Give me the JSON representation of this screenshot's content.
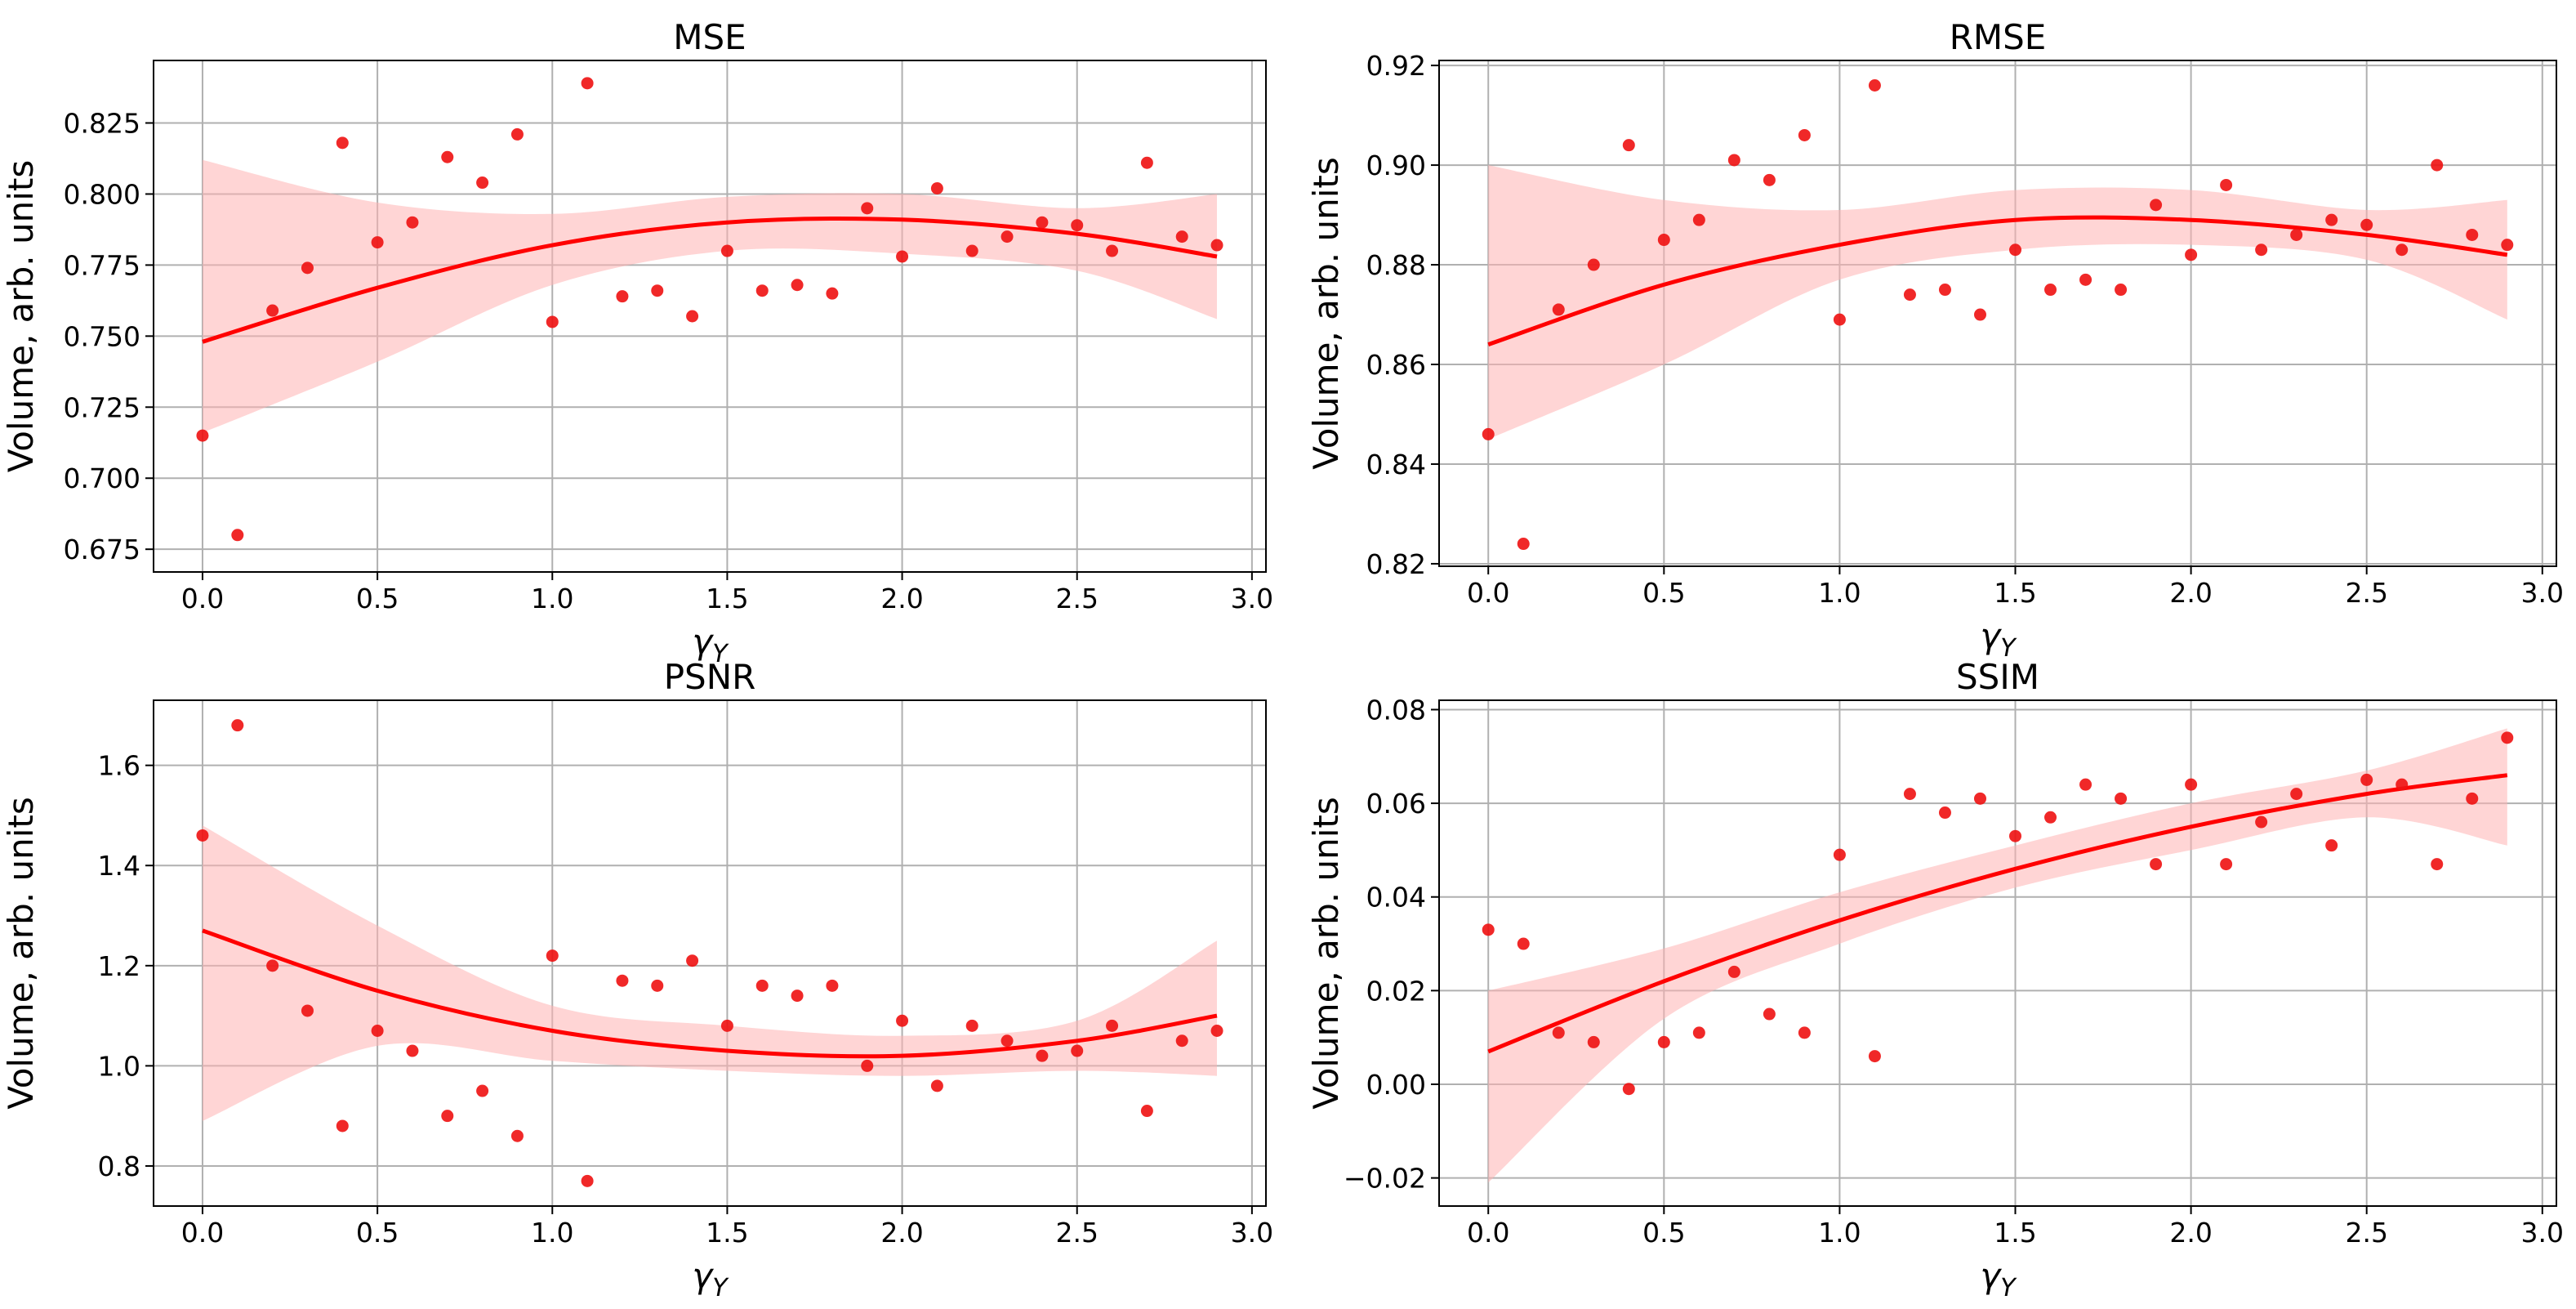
{
  "figure": {
    "ylabel": "Volume, arb. units",
    "xlabel": "γY"
  },
  "chart_data": [
    {
      "type": "scatter",
      "title": "MSE",
      "xlabel": "γY",
      "ylabel": "Volume, arb. units",
      "xlim": [
        -0.14,
        3.04
      ],
      "ylim": [
        0.667,
        0.847
      ],
      "xticks": [
        "0.0",
        "0.5",
        "1.0",
        "1.5",
        "2.0",
        "2.5",
        "3.0"
      ],
      "xtick_values": [
        0,
        0.5,
        1,
        1.5,
        2,
        2.5,
        3
      ],
      "yticks": [
        "0.675",
        "0.700",
        "0.725",
        "0.750",
        "0.775",
        "0.800",
        "0.825"
      ],
      "ytick_values": [
        0.675,
        0.7,
        0.725,
        0.75,
        0.775,
        0.8,
        0.825
      ],
      "grid": true,
      "x": [
        0.0,
        0.1,
        0.2,
        0.3,
        0.4,
        0.5,
        0.6,
        0.7,
        0.8,
        0.9,
        1.0,
        1.1,
        1.2,
        1.3,
        1.4,
        1.5,
        1.6,
        1.7,
        1.8,
        1.9,
        2.0,
        2.1,
        2.2,
        2.3,
        2.4,
        2.5,
        2.6,
        2.7,
        2.8,
        2.9
      ],
      "y": [
        0.715,
        0.68,
        0.759,
        0.774,
        0.818,
        0.783,
        0.79,
        0.813,
        0.804,
        0.821,
        0.755,
        0.839,
        0.764,
        0.766,
        0.757,
        0.78,
        0.766,
        0.768,
        0.765,
        0.795,
        0.778,
        0.802,
        0.78,
        0.785,
        0.79,
        0.789,
        0.78,
        0.811,
        0.785,
        0.782
      ],
      "fit_x": [
        0.0,
        0.5,
        1.0,
        1.5,
        2.0,
        2.5,
        2.9
      ],
      "fit_y": [
        0.748,
        0.767,
        0.782,
        0.79,
        0.791,
        0.786,
        0.778
      ],
      "ci_upper": [
        0.812,
        0.797,
        0.793,
        0.799,
        0.8,
        0.795,
        0.8
      ],
      "ci_lower": [
        0.716,
        0.741,
        0.768,
        0.78,
        0.779,
        0.773,
        0.756
      ]
    },
    {
      "type": "scatter",
      "title": "RMSE",
      "xlabel": "γY",
      "ylabel": "Volume, arb. units",
      "xlim": [
        -0.14,
        3.04
      ],
      "ylim": [
        0.8195,
        0.921
      ],
      "xticks": [
        "0.0",
        "0.5",
        "1.0",
        "1.5",
        "2.0",
        "2.5",
        "3.0"
      ],
      "xtick_values": [
        0,
        0.5,
        1,
        1.5,
        2,
        2.5,
        3
      ],
      "yticks": [
        "0.82",
        "0.84",
        "0.86",
        "0.88",
        "0.90",
        "0.92"
      ],
      "ytick_values": [
        0.82,
        0.84,
        0.86,
        0.88,
        0.9,
        0.92
      ],
      "grid": true,
      "x": [
        0.0,
        0.1,
        0.2,
        0.3,
        0.4,
        0.5,
        0.6,
        0.7,
        0.8,
        0.9,
        1.0,
        1.1,
        1.2,
        1.3,
        1.4,
        1.5,
        1.6,
        1.7,
        1.8,
        1.9,
        2.0,
        2.1,
        2.2,
        2.3,
        2.4,
        2.5,
        2.6,
        2.7,
        2.8,
        2.9
      ],
      "y": [
        0.846,
        0.824,
        0.871,
        0.88,
        0.904,
        0.885,
        0.889,
        0.901,
        0.897,
        0.906,
        0.869,
        0.916,
        0.874,
        0.875,
        0.87,
        0.883,
        0.875,
        0.877,
        0.875,
        0.892,
        0.882,
        0.896,
        0.883,
        0.886,
        0.889,
        0.888,
        0.883,
        0.9,
        0.886,
        0.884
      ],
      "fit_x": [
        0.0,
        0.5,
        1.0,
        1.5,
        2.0,
        2.5,
        2.9
      ],
      "fit_y": [
        0.864,
        0.876,
        0.884,
        0.889,
        0.889,
        0.886,
        0.882
      ],
      "ci_upper": [
        0.9,
        0.893,
        0.891,
        0.895,
        0.895,
        0.891,
        0.893
      ],
      "ci_lower": [
        0.845,
        0.86,
        0.877,
        0.883,
        0.884,
        0.881,
        0.869
      ]
    },
    {
      "type": "scatter",
      "title": "PSNR",
      "xlabel": "γY",
      "ylabel": "Volume, arb. units",
      "xlim": [
        -0.14,
        3.04
      ],
      "ylim": [
        0.72,
        1.73
      ],
      "xticks": [
        "0.0",
        "0.5",
        "1.0",
        "1.5",
        "2.0",
        "2.5",
        "3.0"
      ],
      "xtick_values": [
        0,
        0.5,
        1,
        1.5,
        2,
        2.5,
        3
      ],
      "yticks": [
        "0.8",
        "1.0",
        "1.2",
        "1.4",
        "1.6"
      ],
      "ytick_values": [
        0.8,
        1.0,
        1.2,
        1.4,
        1.6
      ],
      "grid": true,
      "x": [
        0.0,
        0.1,
        0.2,
        0.3,
        0.4,
        0.5,
        0.6,
        0.7,
        0.8,
        0.9,
        1.0,
        1.1,
        1.2,
        1.3,
        1.4,
        1.5,
        1.6,
        1.7,
        1.8,
        1.9,
        2.0,
        2.1,
        2.2,
        2.3,
        2.4,
        2.5,
        2.6,
        2.7,
        2.8,
        2.9
      ],
      "y": [
        1.46,
        1.68,
        1.2,
        1.11,
        0.88,
        1.07,
        1.03,
        0.9,
        0.95,
        0.86,
        1.22,
        0.77,
        1.17,
        1.16,
        1.21,
        1.08,
        1.16,
        1.14,
        1.16,
        1.0,
        1.09,
        0.96,
        1.08,
        1.05,
        1.02,
        1.03,
        1.08,
        0.91,
        1.05,
        1.07
      ],
      "fit_x": [
        0.0,
        0.5,
        1.0,
        1.5,
        2.0,
        2.5,
        2.9
      ],
      "fit_y": [
        1.27,
        1.15,
        1.07,
        1.03,
        1.02,
        1.05,
        1.1
      ],
      "ci_upper": [
        1.48,
        1.28,
        1.12,
        1.08,
        1.06,
        1.09,
        1.25
      ],
      "ci_lower": [
        0.89,
        1.04,
        1.01,
        0.99,
        0.98,
        0.99,
        0.98
      ]
    },
    {
      "type": "scatter",
      "title": "SSIM",
      "xlabel": "γY",
      "ylabel": "Volume, arb. units",
      "xlim": [
        -0.14,
        3.04
      ],
      "ylim": [
        -0.026,
        0.082
      ],
      "xticks": [
        "0.0",
        "0.5",
        "1.0",
        "1.5",
        "2.0",
        "2.5",
        "3.0"
      ],
      "xtick_values": [
        0,
        0.5,
        1,
        1.5,
        2,
        2.5,
        3
      ],
      "yticks": [
        "−0.02",
        "0.00",
        "0.02",
        "0.04",
        "0.06",
        "0.08"
      ],
      "ytick_values": [
        -0.02,
        0.0,
        0.02,
        0.04,
        0.06,
        0.08
      ],
      "grid": true,
      "x": [
        0.0,
        0.1,
        0.2,
        0.3,
        0.4,
        0.5,
        0.6,
        0.7,
        0.8,
        0.9,
        1.0,
        1.1,
        1.2,
        1.3,
        1.4,
        1.5,
        1.6,
        1.7,
        1.8,
        1.9,
        2.0,
        2.1,
        2.2,
        2.3,
        2.4,
        2.5,
        2.6,
        2.7,
        2.8,
        2.9
      ],
      "y": [
        0.033,
        0.03,
        0.011,
        0.009,
        -0.001,
        0.009,
        0.011,
        0.024,
        0.015,
        0.011,
        0.049,
        0.006,
        0.062,
        0.058,
        0.061,
        0.053,
        0.057,
        0.064,
        0.061,
        0.047,
        0.064,
        0.047,
        0.056,
        0.062,
        0.051,
        0.065,
        0.064,
        0.047,
        0.061,
        0.074
      ],
      "fit_x": [
        0.0,
        0.5,
        1.0,
        1.5,
        2.0,
        2.5,
        2.9
      ],
      "fit_y": [
        0.007,
        0.022,
        0.035,
        0.046,
        0.055,
        0.062,
        0.066
      ],
      "ci_upper": [
        0.02,
        0.029,
        0.041,
        0.051,
        0.06,
        0.067,
        0.076
      ],
      "ci_lower": [
        -0.021,
        0.014,
        0.03,
        0.042,
        0.05,
        0.057,
        0.051
      ]
    }
  ]
}
